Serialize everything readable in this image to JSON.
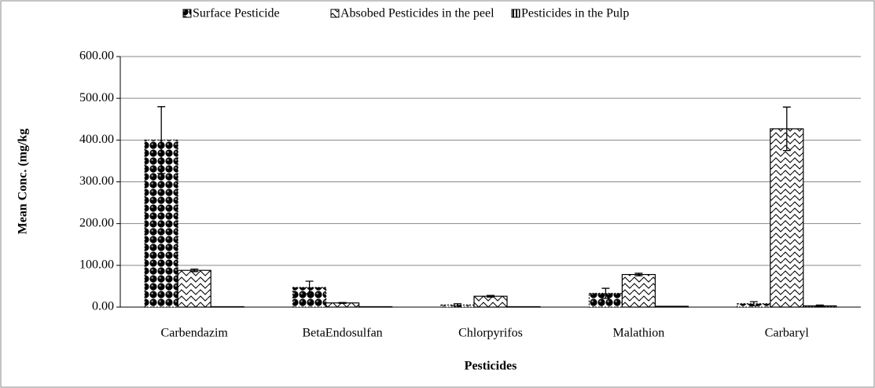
{
  "chart_data": {
    "type": "bar",
    "x_label": "Pesticides",
    "y_label": "Mean Conc. (mg/kg",
    "categories": [
      "Carbendazim",
      "BetaEndosulfan",
      "Chlorpyrifos",
      "Malathion",
      "Carbaryl"
    ],
    "series": [
      {
        "name": "Surface Pesticide",
        "color": "#000000",
        "values": [
          400,
          47,
          5,
          33,
          8
        ],
        "errors": [
          80,
          15,
          3,
          12,
          5
        ]
      },
      {
        "name": "Absobed Pesticides in the peel",
        "color": "#ffffff",
        "values": [
          88,
          10,
          26,
          78,
          427
        ],
        "errors": [
          3,
          1,
          2,
          3,
          52
        ]
      },
      {
        "name": "Pesticides in the Pulp",
        "color": "#ffffff",
        "values": [
          1,
          1,
          1,
          2,
          3
        ],
        "errors": [
          0,
          0,
          0,
          0,
          2
        ]
      }
    ],
    "ylim": [
      0,
      600
    ],
    "yticks": [
      {
        "value": 0,
        "label": "0.00"
      },
      {
        "value": 100,
        "label": "100.00"
      },
      {
        "value": 200,
        "label": "200.00"
      },
      {
        "value": 300,
        "label": "300.00"
      },
      {
        "value": 400,
        "label": "400.00"
      },
      {
        "value": 500,
        "label": "500.00"
      },
      {
        "value": 600,
        "label": "600.00"
      }
    ],
    "grid": true,
    "legend": "top"
  }
}
